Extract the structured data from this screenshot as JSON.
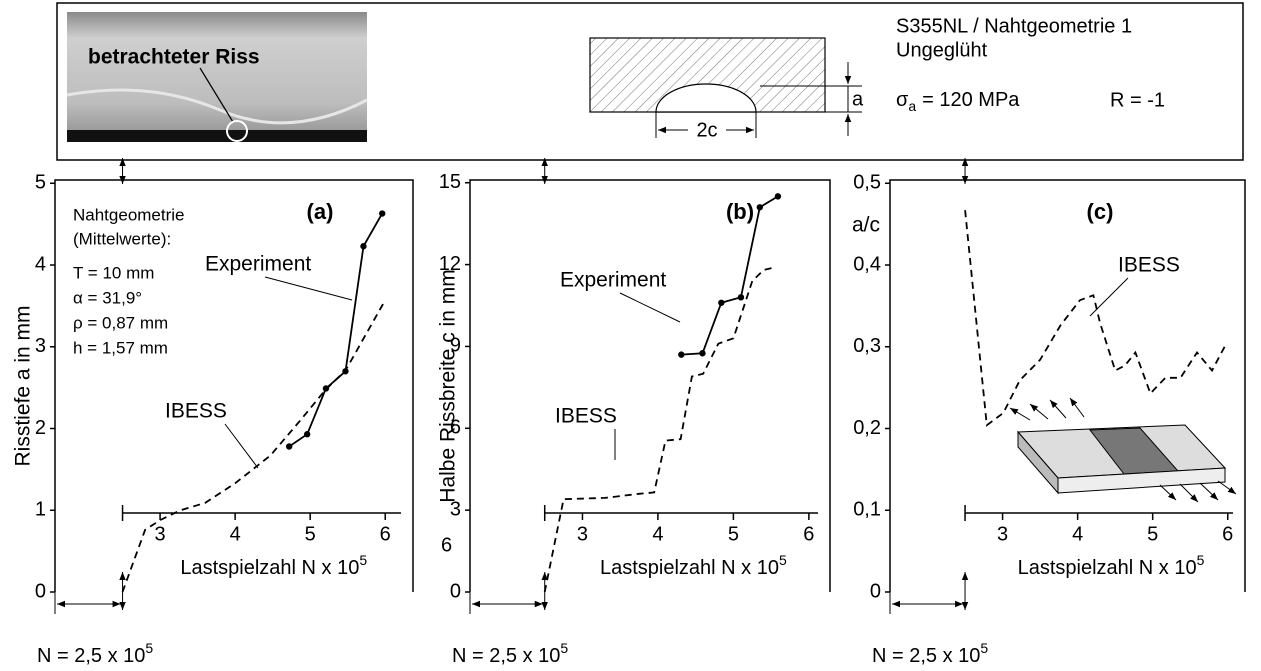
{
  "header": {
    "photo_label": "betrachteter Riss",
    "crack_depth": "a",
    "crack_width": "2c",
    "material": "S355NL / Nahtgeometrie 1",
    "condition": "Ungeglüht",
    "stress_symbol": "σ",
    "stress_sub": "a",
    "stress_value": "= 120 MPa",
    "ratio": "R = -1"
  },
  "chart_data": [
    {
      "type": "line",
      "panel": "(a)",
      "ylabel": "Risstiefe a in mm",
      "xlabel": "Lastspielzahl N x 10",
      "xlabel_exp": "5",
      "origin": {
        "value": 2.5,
        "label": "N = 2,5 x 10"
      },
      "origin_exp": "5",
      "xlim": [
        1.6,
        6.37
      ],
      "ylim": [
        0,
        5.04
      ],
      "xticks": [
        3,
        4,
        5,
        6
      ],
      "yticks": [
        0,
        1,
        2,
        3,
        4,
        5
      ],
      "notes": [
        "Nahtgeometrie",
        "(Mittelwerte):",
        "T = 10 mm",
        "α = 31,9°",
        "ρ = 0,87 mm",
        "h = 1,57 mm"
      ],
      "series": [
        {
          "name": "Experiment",
          "color": "#000000",
          "dashed": false,
          "markers": true,
          "x": [
            4.72,
            4.96,
            5.21,
            5.47,
            5.71,
            5.96
          ],
          "values": [
            1.78,
            1.93,
            2.49,
            2.7,
            4.23,
            4.63
          ]
        },
        {
          "name": "IBESS",
          "color": "#000000",
          "dashed": true,
          "markers": false,
          "x": [
            2.5,
            2.8,
            3.0,
            3.27,
            3.6,
            4.0,
            4.47,
            4.87,
            5.2,
            5.47,
            6.0
          ],
          "values": [
            0,
            0.76,
            0.88,
            1.0,
            1.09,
            1.33,
            1.67,
            2.1,
            2.47,
            2.71,
            3.57
          ]
        }
      ]
    },
    {
      "type": "line",
      "panel": "(b)",
      "ylabel": "Halbe Rissbreite c in mm",
      "xlabel": "Lastspielzahl N x 10",
      "xlabel_exp": "5",
      "origin": {
        "value": 2.5,
        "label": "N = 2,5 x 10"
      },
      "origin_exp": "5",
      "xlim": [
        1.51,
        6.28
      ],
      "ylim": [
        0,
        15.1
      ],
      "xticks": [
        3,
        4,
        5,
        6
      ],
      "yticks": [
        0,
        3,
        6,
        9,
        12,
        15
      ],
      "notes": [
        "6"
      ],
      "series": [
        {
          "name": "Experiment",
          "color": "#000000",
          "dashed": false,
          "markers": true,
          "x": [
            4.31,
            4.59,
            4.84,
            5.1,
            5.35,
            5.59
          ],
          "values": [
            8.7,
            8.75,
            10.6,
            10.8,
            14.1,
            14.5
          ]
        },
        {
          "name": "IBESS",
          "color": "#000000",
          "dashed": true,
          "markers": false,
          "x": [
            2.5,
            2.75,
            3.3,
            3.75,
            3.95,
            4.1,
            4.3,
            4.45,
            4.6,
            4.8,
            5.0,
            5.25,
            5.4,
            5.55
          ],
          "values": [
            0,
            3.4,
            3.45,
            3.6,
            3.65,
            5.55,
            5.6,
            7.9,
            8.0,
            9.1,
            9.3,
            11.4,
            11.8,
            11.9
          ]
        }
      ]
    },
    {
      "type": "line",
      "panel": "(c)",
      "ylabel": "a/c",
      "xlabel": "Lastspielzahl N x 10",
      "xlabel_exp": "5",
      "origin": {
        "value": 2.5,
        "label": "N = 2,5 x 10"
      },
      "origin_exp": "5",
      "xlim": [
        1.5,
        6.23
      ],
      "ylim": [
        0,
        0.504
      ],
      "xticks": [
        3,
        4,
        5,
        6
      ],
      "yticks": [
        0,
        {
          "value": 0.1,
          "label": "0,1"
        },
        {
          "value": 0.2,
          "label": "0,2"
        },
        {
          "value": 0.3,
          "label": "0,3"
        },
        {
          "value": 0.4,
          "label": "0,4"
        },
        {
          "value": 0.5,
          "label": "0,5"
        }
      ],
      "series": [
        {
          "name": "IBESS",
          "color": "#000000",
          "dashed": true,
          "markers": false,
          "x": [
            2.5,
            2.79,
            3.01,
            3.23,
            3.5,
            3.77,
            4.03,
            4.21,
            4.3,
            4.5,
            4.63,
            4.77,
            4.97,
            5.17,
            5.37,
            5.59,
            5.79,
            5.97
          ],
          "values": [
            0.467,
            0.204,
            0.219,
            0.259,
            0.284,
            0.326,
            0.357,
            0.363,
            0.329,
            0.271,
            0.277,
            0.293,
            0.243,
            0.262,
            0.262,
            0.293,
            0.271,
            0.302
          ]
        }
      ]
    }
  ]
}
